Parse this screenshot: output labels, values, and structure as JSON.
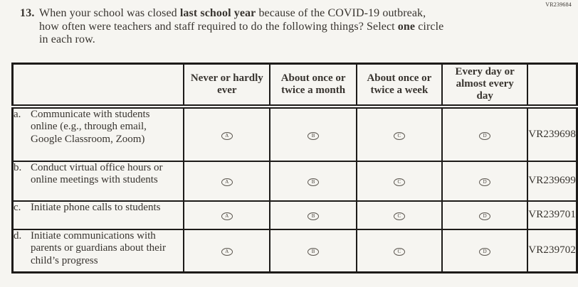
{
  "page": {
    "top_right_code": "VR239684"
  },
  "colors": {
    "background": "#f6f5f1",
    "text": "#38342f",
    "border": "#1d1b19"
  },
  "question": {
    "number": "13.",
    "line1_a": "When your school was closed ",
    "line1_b": "last school year",
    "line1_c": " because of the COVID-19 outbreak,",
    "line2_a": "how often were teachers and staff required to do the following things? Select ",
    "line2_b": "one",
    "line2_c": " circle",
    "line3": "in each row."
  },
  "table": {
    "column_headers": [
      "Never or hardly ever",
      "About once or twice a month",
      "About once or twice a week",
      "Every day or almost every day"
    ],
    "option_letters": [
      "A",
      "B",
      "C",
      "D"
    ],
    "rows": [
      {
        "letter": "a.",
        "label": "Communicate with students online (e.g., through email, Google Classroom, Zoom)",
        "code": "VR239698"
      },
      {
        "letter": "b.",
        "label": "Conduct virtual office hours or online meetings with students",
        "code": "VR239699"
      },
      {
        "letter": "c.",
        "label": "Initiate phone calls to students",
        "code": "VR239701"
      },
      {
        "letter": "d.",
        "label": "Initiate communications with parents or guardians about their child’s progress",
        "code": "VR239702"
      }
    ]
  }
}
